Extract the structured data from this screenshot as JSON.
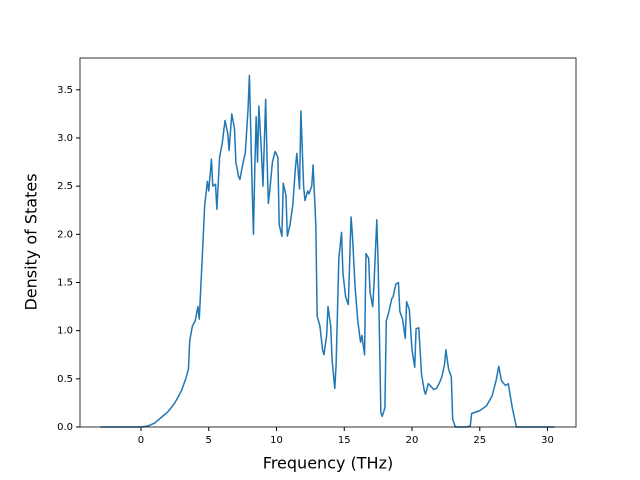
{
  "chart_data": {
    "type": "line",
    "x_label": "Frequency (THz)",
    "y_label": "Density of States",
    "x": [
      -3,
      0,
      0.5,
      1,
      1.5,
      2,
      2.5,
      3,
      3.3,
      3.5,
      3.6,
      3.8,
      4.0,
      4.2,
      4.3,
      4.5,
      4.7,
      4.9,
      5.0,
      5.2,
      5.3,
      5.5,
      5.6,
      5.8,
      6.0,
      6.2,
      6.4,
      6.5,
      6.7,
      6.9,
      7.0,
      7.2,
      7.3,
      7.5,
      7.7,
      7.9,
      8.0,
      8.2,
      8.3,
      8.4,
      8.5,
      8.6,
      8.7,
      8.9,
      9.0,
      9.2,
      9.3,
      9.4,
      9.5,
      9.7,
      9.9,
      10.1,
      10.2,
      10.4,
      10.5,
      10.7,
      10.8,
      11.0,
      11.2,
      11.4,
      11.5,
      11.7,
      11.8,
      12.0,
      12.1,
      12.3,
      12.4,
      12.6,
      12.7,
      12.9,
      13.0,
      13.2,
      13.4,
      13.5,
      13.7,
      13.8,
      14.0,
      14.1,
      14.3,
      14.4,
      14.6,
      14.8,
      14.9,
      15.1,
      15.3,
      15.5,
      15.6,
      15.8,
      16.0,
      16.2,
      16.3,
      16.5,
      16.6,
      16.8,
      16.9,
      17.1,
      17.2,
      17.4,
      17.5,
      17.7,
      17.8,
      18.0,
      18.1,
      18.3,
      18.5,
      18.6,
      18.8,
      19.0,
      19.1,
      19.3,
      19.5,
      19.6,
      19.8,
      20.0,
      20.2,
      20.3,
      20.5,
      20.7,
      20.9,
      21.0,
      21.2,
      21.4,
      21.6,
      21.8,
      22.0,
      22.2,
      22.4,
      22.5,
      22.7,
      22.9,
      23.0,
      23.2,
      24.0,
      24.3,
      24.4,
      25.0,
      25.5,
      25.9,
      26.2,
      26.4,
      26.6,
      26.9,
      27.1,
      27.4,
      27.7,
      30.5
    ],
    "series": [
      {
        "color": "#1f77b4",
        "values": [
          0,
          0,
          0.01,
          0.04,
          0.1,
          0.16,
          0.25,
          0.38,
          0.5,
          0.6,
          0.9,
          1.05,
          1.1,
          1.25,
          1.12,
          1.7,
          2.3,
          2.55,
          2.45,
          2.78,
          2.5,
          2.52,
          2.26,
          2.8,
          2.95,
          3.18,
          3.05,
          2.87,
          3.25,
          3.1,
          2.75,
          2.6,
          2.57,
          2.72,
          2.85,
          3.3,
          3.65,
          2.5,
          2.0,
          2.7,
          3.22,
          2.75,
          3.33,
          2.82,
          2.5,
          3.4,
          2.8,
          2.32,
          2.45,
          2.75,
          2.86,
          2.8,
          2.1,
          1.98,
          2.53,
          2.4,
          1.98,
          2.1,
          2.3,
          2.7,
          2.84,
          2.47,
          3.28,
          2.5,
          2.35,
          2.45,
          2.42,
          2.5,
          2.72,
          2.1,
          1.15,
          1.05,
          0.8,
          0.75,
          0.95,
          1.25,
          1.05,
          0.7,
          0.4,
          0.65,
          1.75,
          2.02,
          1.6,
          1.35,
          1.27,
          2.18,
          2.0,
          1.45,
          1.1,
          0.88,
          0.95,
          0.75,
          1.8,
          1.75,
          1.4,
          1.25,
          1.5,
          2.15,
          1.7,
          0.15,
          0.11,
          0.2,
          1.1,
          1.2,
          1.33,
          1.35,
          1.48,
          1.5,
          1.2,
          1.12,
          0.92,
          1.3,
          1.22,
          0.8,
          0.62,
          1.02,
          1.03,
          0.55,
          0.38,
          0.34,
          0.45,
          0.42,
          0.39,
          0.4,
          0.45,
          0.52,
          0.65,
          0.8,
          0.6,
          0.52,
          0.08,
          0,
          0,
          0.01,
          0.14,
          0.17,
          0.22,
          0.32,
          0.48,
          0.63,
          0.48,
          0.43,
          0.45,
          0.2,
          0,
          0
        ]
      }
    ],
    "xlim": [
      -4.5,
      32.1
    ],
    "ylim": [
      0,
      3.83
    ],
    "xticks": [
      0,
      5,
      10,
      15,
      20,
      25,
      30
    ],
    "yticks": [
      {
        "value": 0,
        "label": "0.0"
      },
      {
        "value": 0.5,
        "label": "0.5"
      },
      {
        "value": 1,
        "label": "1.0"
      },
      {
        "value": 1.5,
        "label": "1.5"
      },
      {
        "value": 2,
        "label": "2.0"
      },
      {
        "value": 2.5,
        "label": "2.5"
      },
      {
        "value": 3,
        "label": "3.0"
      },
      {
        "value": 3.5,
        "label": "3.5"
      }
    ]
  }
}
